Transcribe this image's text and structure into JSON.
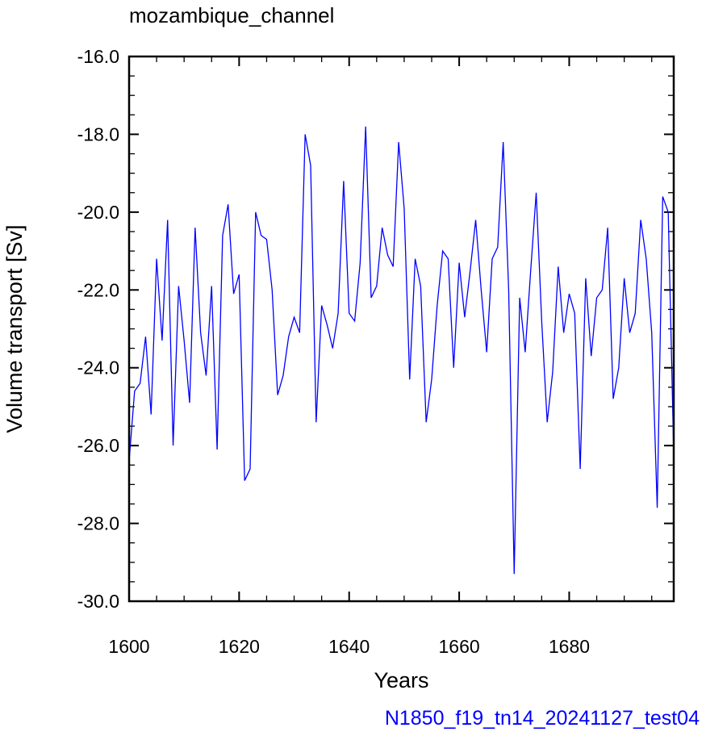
{
  "chart_data": {
    "type": "line",
    "title": "mozambique_channel",
    "xlabel": "Years",
    "ylabel": "Volume transport [Sv]",
    "xlim": [
      1600,
      1699
    ],
    "ylim": [
      -30,
      -16
    ],
    "x_ticks": [
      1600,
      1620,
      1640,
      1660,
      1680
    ],
    "x_tick_labels": [
      "1600",
      "1620",
      "1640",
      "1660",
      "1680"
    ],
    "y_ticks": [
      -30,
      -28,
      -26,
      -24,
      -22,
      -20,
      -18,
      -16
    ],
    "y_tick_labels": [
      "-30.0",
      "-28.0",
      "-26.0",
      "-24.0",
      "-22.0",
      "-20.0",
      "-18.0",
      "-16.0"
    ],
    "grid": false,
    "legend": "none",
    "line_color": "#0000ff",
    "series": [
      {
        "x": [
          1600,
          1601,
          1602,
          1603,
          1604,
          1605,
          1606,
          1607,
          1608,
          1609,
          1610,
          1611,
          1612,
          1613,
          1614,
          1615,
          1616,
          1617,
          1618,
          1619,
          1620,
          1621,
          1622,
          1623,
          1624,
          1625,
          1626,
          1627,
          1628,
          1629,
          1630,
          1631,
          1632,
          1633,
          1634,
          1635,
          1636,
          1637,
          1638,
          1639,
          1640,
          1641,
          1642,
          1643,
          1644,
          1645,
          1646,
          1647,
          1648,
          1649,
          1650,
          1651,
          1652,
          1653,
          1654,
          1655,
          1656,
          1657,
          1658,
          1659,
          1660,
          1661,
          1662,
          1663,
          1664,
          1665,
          1666,
          1667,
          1668,
          1669,
          1670,
          1671,
          1672,
          1673,
          1674,
          1675,
          1676,
          1677,
          1678,
          1679,
          1680,
          1681,
          1682,
          1683,
          1684,
          1685,
          1686,
          1687,
          1688,
          1689,
          1690,
          1691,
          1692,
          1693,
          1694,
          1695,
          1696,
          1697,
          1698,
          1699
        ],
        "values": [
          -26.4,
          -24.6,
          -24.4,
          -23.2,
          -25.2,
          -21.2,
          -23.3,
          -20.2,
          -26.0,
          -21.9,
          -23.3,
          -24.9,
          -20.4,
          -23.1,
          -24.2,
          -21.9,
          -26.1,
          -20.6,
          -19.8,
          -22.1,
          -21.6,
          -26.9,
          -26.6,
          -20.0,
          -20.6,
          -20.7,
          -22.0,
          -24.7,
          -24.2,
          -23.2,
          -22.7,
          -23.1,
          -18.0,
          -18.8,
          -25.4,
          -22.4,
          -22.9,
          -23.5,
          -22.6,
          -19.2,
          -22.6,
          -22.8,
          -21.3,
          -17.8,
          -22.2,
          -21.9,
          -20.4,
          -21.1,
          -21.4,
          -18.2,
          -19.9,
          -24.3,
          -21.2,
          -21.9,
          -25.4,
          -24.3,
          -22.4,
          -21.0,
          -21.2,
          -24.0,
          -21.3,
          -22.7,
          -21.5,
          -20.2,
          -22.0,
          -23.6,
          -21.2,
          -20.9,
          -18.2,
          -22.0,
          -29.3,
          -22.2,
          -23.6,
          -21.5,
          -19.5,
          -22.8,
          -25.4,
          -24.1,
          -21.4,
          -23.1,
          -22.1,
          -22.6,
          -26.6,
          -21.7,
          -23.7,
          -22.2,
          -22.0,
          -20.4,
          -24.8,
          -24.0,
          -21.7,
          -23.1,
          -22.6,
          -20.2,
          -21.2,
          -23.1,
          -27.6,
          -19.6,
          -20.0,
          -26.2
        ]
      }
    ]
  },
  "footer_label": "N1850_f19_tn14_20241127_test04",
  "footer_color": "#0000ff"
}
